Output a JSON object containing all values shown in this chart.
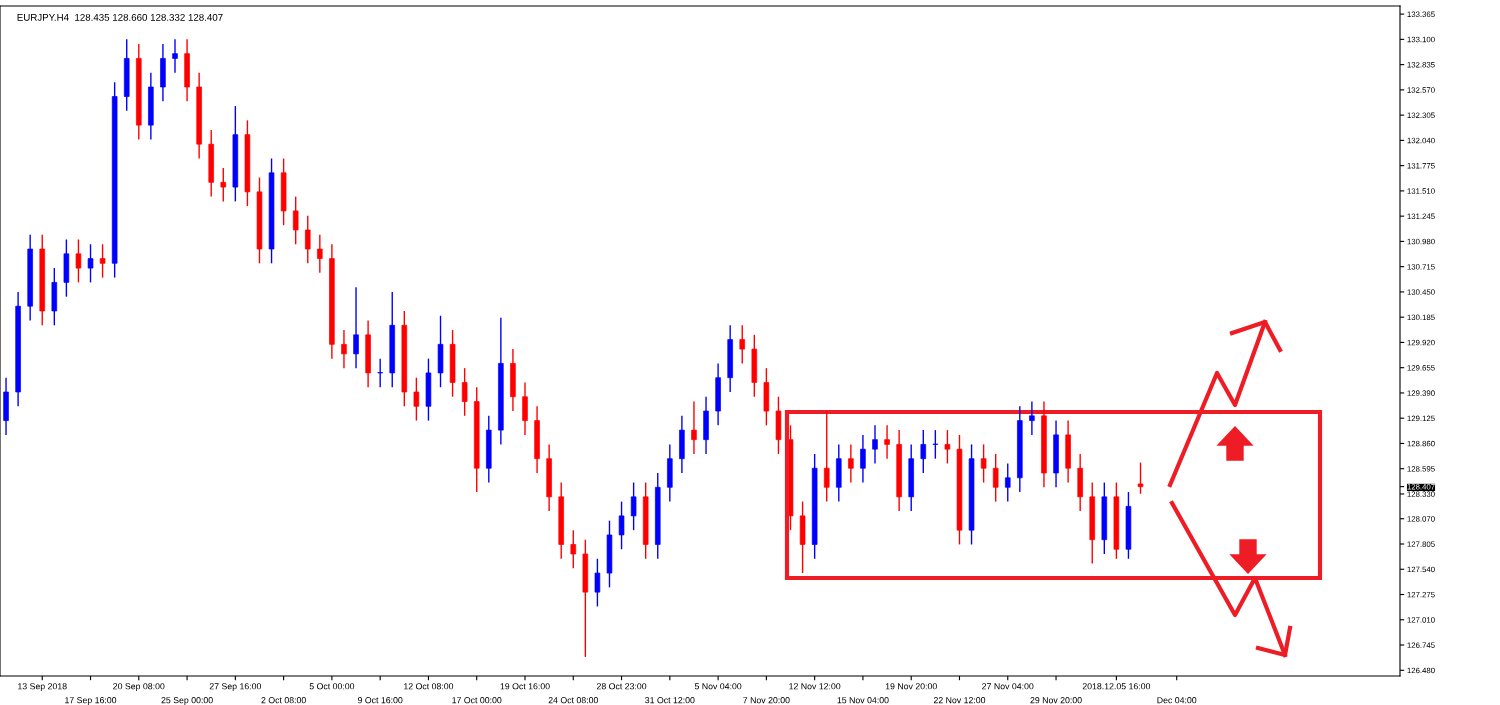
{
  "chart_data": {
    "type": "candlestick",
    "title": "EURJPY.H4  128.435 128.660 128.332 128.407",
    "categories": [
      null,
      null,
      null,
      "13 Sep 2018",
      null,
      null,
      null,
      "17 Sep 16:00",
      null,
      null,
      null,
      "20 Sep 08:00",
      null,
      null,
      null,
      "25 Sep 00:00",
      null,
      null,
      null,
      "27 Sep 16:00",
      null,
      null,
      null,
      "2 Oct 08:00",
      null,
      null,
      null,
      "5 Oct 00:00",
      null,
      null,
      null,
      "9 Oct 16:00",
      null,
      null,
      null,
      "12 Oct 08:00",
      null,
      null,
      null,
      "17 Oct 00:00",
      null,
      null,
      null,
      "19 Oct 16:00",
      null,
      null,
      null,
      "24 Oct 08:00",
      null,
      null,
      null,
      "28 Oct 23:00",
      null,
      null,
      null,
      "31 Oct 12:00",
      null,
      null,
      null,
      "5 Nov 04:00",
      null,
      null,
      null,
      "7 Nov 20:00",
      null,
      null,
      null,
      "12 Nov 12:00",
      null,
      null,
      null,
      "15 Nov 04:00",
      null,
      null,
      null,
      "19 Nov 20:00",
      null,
      null,
      null,
      "22 Nov 12:00",
      null,
      null,
      null,
      "27 Nov 04:00",
      null,
      null,
      null,
      "29 Nov 20:00",
      null,
      null,
      null,
      null,
      "2018.12.05 16:00",
      null,
      null,
      null,
      null,
      "Dec 04:00",
      null,
      null,
      null,
      null,
      null,
      null,
      null,
      null,
      null,
      null,
      null,
      null,
      null,
      null,
      null,
      null,
      null,
      null
    ],
    "ohlc": [
      [
        129.1,
        129.55,
        128.95,
        129.4
      ],
      [
        129.4,
        130.45,
        129.25,
        130.3
      ],
      [
        130.3,
        131.05,
        130.15,
        130.9
      ],
      [
        130.9,
        131.05,
        130.1,
        130.25
      ],
      [
        130.25,
        130.7,
        130.1,
        130.55
      ],
      [
        130.55,
        131.0,
        130.4,
        130.85
      ],
      [
        130.85,
        131.0,
        130.55,
        130.7
      ],
      [
        130.7,
        130.95,
        130.55,
        130.8
      ],
      [
        130.8,
        130.95,
        130.6,
        130.75
      ],
      [
        130.75,
        132.65,
        130.6,
        132.5
      ],
      [
        132.5,
        133.1,
        132.35,
        132.9
      ],
      [
        132.9,
        133.05,
        132.05,
        132.2
      ],
      [
        132.2,
        132.75,
        132.05,
        132.6
      ],
      [
        132.6,
        133.05,
        132.45,
        132.9
      ],
      [
        132.9,
        133.1,
        132.75,
        132.95
      ],
      [
        132.95,
        133.1,
        132.45,
        132.6
      ],
      [
        132.6,
        132.75,
        131.85,
        132.0
      ],
      [
        132.0,
        132.15,
        131.45,
        131.6
      ],
      [
        131.6,
        131.75,
        131.4,
        131.55
      ],
      [
        131.55,
        132.4,
        131.4,
        132.1
      ],
      [
        132.1,
        132.25,
        131.35,
        131.5
      ],
      [
        131.5,
        131.65,
        130.75,
        130.9
      ],
      [
        130.9,
        131.85,
        130.75,
        131.7
      ],
      [
        131.7,
        131.85,
        131.15,
        131.3
      ],
      [
        131.3,
        131.45,
        130.95,
        131.1
      ],
      [
        131.1,
        131.25,
        130.75,
        130.9
      ],
      [
        130.9,
        131.05,
        130.65,
        130.8
      ],
      [
        130.8,
        130.95,
        129.75,
        129.9
      ],
      [
        129.9,
        130.05,
        129.65,
        129.8
      ],
      [
        129.8,
        130.5,
        129.65,
        130.0
      ],
      [
        130.0,
        130.15,
        129.45,
        129.6
      ],
      [
        129.6,
        129.75,
        129.45,
        129.6
      ],
      [
        129.6,
        130.45,
        129.45,
        130.1
      ],
      [
        130.1,
        130.25,
        129.25,
        129.4
      ],
      [
        129.4,
        129.55,
        129.1,
        129.25
      ],
      [
        129.25,
        129.75,
        129.1,
        129.6
      ],
      [
        129.6,
        130.2,
        129.45,
        129.9
      ],
      [
        129.9,
        130.05,
        129.35,
        129.5
      ],
      [
        129.5,
        129.65,
        129.15,
        129.3
      ],
      [
        129.3,
        129.45,
        128.35,
        128.6
      ],
      [
        128.6,
        129.15,
        128.45,
        129.0
      ],
      [
        129.0,
        130.18,
        128.85,
        129.7
      ],
      [
        129.7,
        129.85,
        129.2,
        129.35
      ],
      [
        129.35,
        129.5,
        128.95,
        129.1
      ],
      [
        129.1,
        129.25,
        128.55,
        128.7
      ],
      [
        128.7,
        128.85,
        128.15,
        128.3
      ],
      [
        128.3,
        128.45,
        127.65,
        127.8
      ],
      [
        127.8,
        127.95,
        127.55,
        127.7
      ],
      [
        127.7,
        127.85,
        126.62,
        127.3
      ],
      [
        127.3,
        127.65,
        127.15,
        127.5
      ],
      [
        127.5,
        128.05,
        127.35,
        127.9
      ],
      [
        127.9,
        128.25,
        127.75,
        128.1
      ],
      [
        128.1,
        128.45,
        127.95,
        128.3
      ],
      [
        128.3,
        128.45,
        127.65,
        127.8
      ],
      [
        127.8,
        128.55,
        127.65,
        128.4
      ],
      [
        128.4,
        128.85,
        128.25,
        128.7
      ],
      [
        128.7,
        129.15,
        128.55,
        129.0
      ],
      [
        129.0,
        129.3,
        128.75,
        128.9
      ],
      [
        128.9,
        129.35,
        128.75,
        129.2
      ],
      [
        129.2,
        129.7,
        129.05,
        129.55
      ],
      [
        129.55,
        130.1,
        129.4,
        129.95
      ],
      [
        129.95,
        130.1,
        129.7,
        129.85
      ],
      [
        129.85,
        130.0,
        129.35,
        129.5
      ],
      [
        129.5,
        129.65,
        129.05,
        129.2
      ],
      [
        129.2,
        129.35,
        128.75,
        128.9
      ],
      [
        128.9,
        129.05,
        127.95,
        128.1
      ],
      [
        128.1,
        128.25,
        127.5,
        127.8
      ],
      [
        127.8,
        128.75,
        127.65,
        128.6
      ],
      [
        128.6,
        129.2,
        128.25,
        128.4
      ],
      [
        128.4,
        128.85,
        128.25,
        128.7
      ],
      [
        128.7,
        128.85,
        128.45,
        128.6
      ],
      [
        128.6,
        128.95,
        128.45,
        128.8
      ],
      [
        128.8,
        129.05,
        128.65,
        128.9
      ],
      [
        128.9,
        129.05,
        128.7,
        128.85
      ],
      [
        128.85,
        129.0,
        128.15,
        128.3
      ],
      [
        128.3,
        128.85,
        128.15,
        128.7
      ],
      [
        128.7,
        129.0,
        128.55,
        128.85
      ],
      [
        128.85,
        129.0,
        128.7,
        128.85
      ],
      [
        128.85,
        129.0,
        128.65,
        128.8
      ],
      [
        128.8,
        128.95,
        127.8,
        127.95
      ],
      [
        127.95,
        128.85,
        127.8,
        128.7
      ],
      [
        128.7,
        128.85,
        128.45,
        128.6
      ],
      [
        128.6,
        128.75,
        128.25,
        128.4
      ],
      [
        128.4,
        128.65,
        128.25,
        128.5
      ],
      [
        128.5,
        129.25,
        128.35,
        129.1
      ],
      [
        129.1,
        129.3,
        128.95,
        129.15
      ],
      [
        129.15,
        129.3,
        128.4,
        128.55
      ],
      [
        128.55,
        129.1,
        128.4,
        128.95
      ],
      [
        128.95,
        129.1,
        128.45,
        128.6
      ],
      [
        128.6,
        128.75,
        128.15,
        128.3
      ],
      [
        128.3,
        128.45,
        127.6,
        127.85
      ],
      [
        127.85,
        128.45,
        127.7,
        128.3
      ],
      [
        128.3,
        128.45,
        127.65,
        127.75
      ],
      [
        127.75,
        128.35,
        127.65,
        128.2
      ],
      [
        128.435,
        128.66,
        128.332,
        128.407
      ],
      null,
      null,
      null,
      null,
      null,
      null,
      null,
      null,
      null,
      null,
      null,
      null,
      null,
      null,
      null,
      null,
      null,
      null,
      null,
      null,
      null
    ],
    "colors": [
      "#0000ff",
      "#0000ff",
      "#0000ff",
      "#ff0000",
      "#0000ff",
      "#0000ff",
      "#ff0000",
      "#0000ff",
      "#ff0000",
      "#0000ff",
      "#0000ff",
      "#ff0000",
      "#0000ff",
      "#0000ff",
      "#0000ff",
      "#ff0000",
      "#ff0000",
      "#ff0000",
      "#ff0000",
      "#0000ff",
      "#ff0000",
      "#ff0000",
      "#0000ff",
      "#ff0000",
      "#ff0000",
      "#ff0000",
      "#ff0000",
      "#ff0000",
      "#ff0000",
      "#0000ff",
      "#ff0000",
      "#0000ff",
      "#0000ff",
      "#ff0000",
      "#ff0000",
      "#0000ff",
      "#0000ff",
      "#ff0000",
      "#ff0000",
      "#ff0000",
      "#0000ff",
      "#0000ff",
      "#ff0000",
      "#ff0000",
      "#ff0000",
      "#ff0000",
      "#ff0000",
      "#ff0000",
      "#ff0000",
      "#0000ff",
      "#0000ff",
      "#0000ff",
      "#0000ff",
      "#ff0000",
      "#0000ff",
      "#0000ff",
      "#0000ff",
      "#ff0000",
      "#0000ff",
      "#0000ff",
      "#0000ff",
      "#ff0000",
      "#ff0000",
      "#ff0000",
      "#ff0000",
      "#ff0000",
      "#ff0000",
      "#0000ff",
      "#ff0000",
      "#0000ff",
      "#ff0000",
      "#0000ff",
      "#0000ff",
      "#ff0000",
      "#ff0000",
      "#0000ff",
      "#0000ff",
      "#0000ff",
      "#ff0000",
      "#ff0000",
      "#0000ff",
      "#ff0000",
      "#ff0000",
      "#0000ff",
      "#0000ff",
      "#0000ff",
      "#ff0000",
      "#0000ff",
      "#ff0000",
      "#ff0000",
      "#ff0000",
      "#0000ff",
      "#ff0000",
      "#0000ff",
      "#ff0000",
      null,
      null,
      null,
      null,
      null,
      null,
      null,
      null,
      null,
      null,
      null,
      null,
      null,
      null,
      null,
      null,
      null,
      null,
      null,
      null,
      null
    ],
    "ylim": [
      126.42,
      133.45
    ],
    "yticks": [
      {
        "value": 126.48,
        "label": "126.480"
      },
      {
        "value": 126.745,
        "label": "126.745"
      },
      {
        "value": 127.01,
        "label": "127.010"
      },
      {
        "value": 127.275,
        "label": "127.275"
      },
      {
        "value": 127.54,
        "label": "127.540"
      },
      {
        "value": 127.805,
        "label": "127.805"
      },
      {
        "value": 128.07,
        "label": "128.070"
      },
      {
        "value": 128.33,
        "label": "128.330"
      },
      {
        "value": 128.407,
        "label": "128.407"
      },
      {
        "value": 128.595,
        "label": "128.595"
      },
      {
        "value": 128.86,
        "label": "128.860"
      },
      {
        "value": 129.125,
        "label": "129.125"
      },
      {
        "value": 129.39,
        "label": "129.390"
      },
      {
        "value": 129.655,
        "label": "129.655"
      },
      {
        "value": 129.92,
        "label": "129.920"
      },
      {
        "value": 130.185,
        "label": "130.185"
      },
      {
        "value": 130.45,
        "label": "130.450"
      },
      {
        "value": 130.715,
        "label": "130.715"
      },
      {
        "value": 130.98,
        "label": "130.980"
      },
      {
        "value": 131.245,
        "label": "131.245"
      },
      {
        "value": 131.51,
        "label": "131.510"
      },
      {
        "value": 131.775,
        "label": "131.775"
      },
      {
        "value": 132.04,
        "label": "132.040"
      },
      {
        "value": 132.305,
        "label": "132.305"
      },
      {
        "value": 132.57,
        "label": "132.570"
      },
      {
        "value": 132.835,
        "label": "132.835"
      },
      {
        "value": 133.1,
        "label": "133.100"
      },
      {
        "value": 133.365,
        "label": "133.365"
      }
    ]
  }
}
